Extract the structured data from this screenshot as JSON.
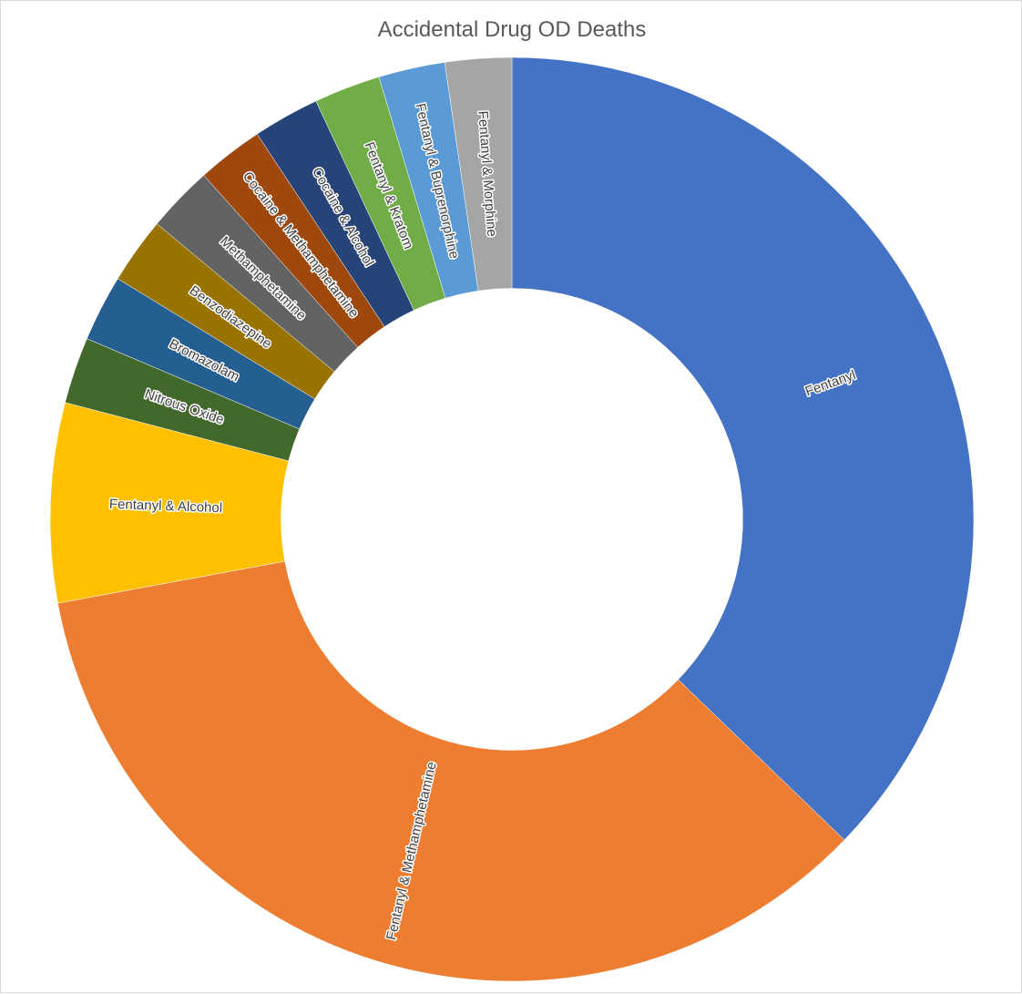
{
  "chart_data": {
    "type": "pie",
    "variant": "doughnut",
    "title": "Accidental Drug OD Deaths",
    "categories": [
      "Fentanyl",
      "Fentanyl & Methamphetamine",
      "Fentanyl & Alcohol",
      "Nitrous Oxide",
      "Bromazolam",
      "Benzodiazepine",
      "Methamphetamine",
      "Cocaine & Methamphetamine",
      "Cocaine & Alcohol",
      "Fentanyl & Kratom",
      "Fentanyl & Buprenorphine",
      "Fentanyl & Morphine"
    ],
    "values": [
      16,
      15,
      3,
      1,
      1,
      1,
      1,
      1,
      1,
      1,
      1,
      1
    ],
    "colors": [
      "#4472C4",
      "#ED7D31",
      "#FFC000",
      "#43682B",
      "#255E91",
      "#997300",
      "#636363",
      "#9E480E",
      "#264478",
      "#70AD47",
      "#5B9BD5",
      "#A5A5A5"
    ],
    "start_angle_deg": 0,
    "direction": "clockwise",
    "hole_ratio": 0.5,
    "data_labels": "category name",
    "legend": "none"
  }
}
